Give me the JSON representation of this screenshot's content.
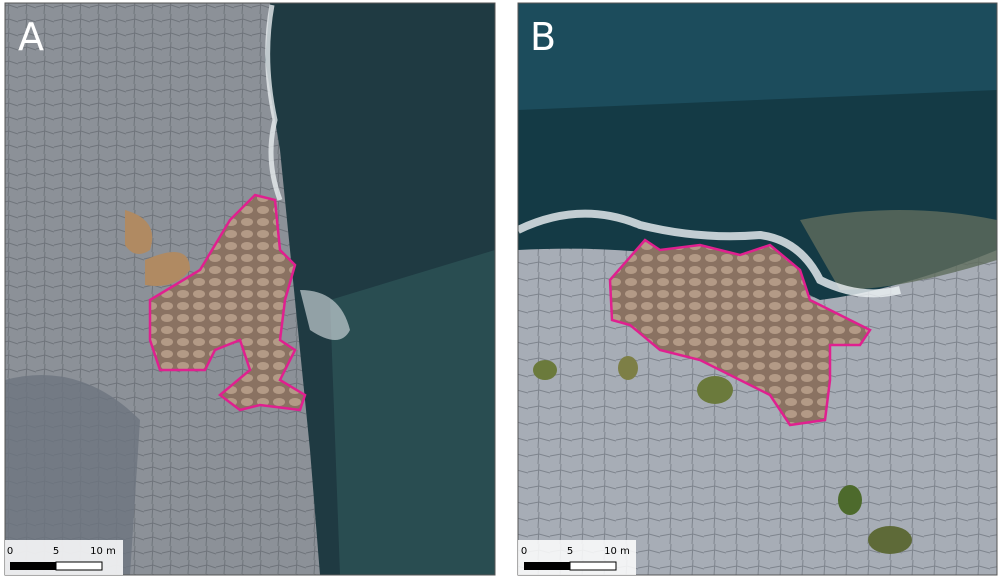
{
  "panels": [
    {
      "label": "A",
      "scale_bar": {
        "labels": [
          "0",
          "5",
          "10 m"
        ]
      }
    },
    {
      "label": "B",
      "scale_bar": {
        "labels": [
          "0",
          "5",
          "10 m"
        ]
      }
    }
  ]
}
